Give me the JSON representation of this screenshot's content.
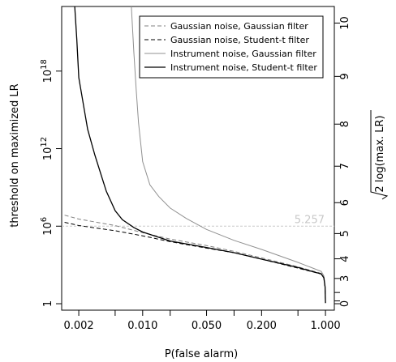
{
  "chart_data": {
    "type": "line",
    "xlabel": "P(false alarm)",
    "ylabel_left": "threshold on maximized LR",
    "ylabel_right": "√(2 log(max. LR))",
    "x_scale": "log",
    "y_scale": "log",
    "xlim": [
      0.0013,
      1.25
    ],
    "ylim_log10": [
      -0.5,
      23
    ],
    "x_ticks": [
      {
        "value": 0.002,
        "label": "0.002"
      },
      {
        "value": 0.01,
        "label": "0.010"
      },
      {
        "value": 0.05,
        "label": "0.050"
      },
      {
        "value": 0.2,
        "label": "0.200"
      },
      {
        "value": 1.0,
        "label": "1.000"
      }
    ],
    "x_minor_ticks": [
      0.005,
      0.02,
      0.1,
      0.5
    ],
    "y_left_ticks": [
      {
        "log10": 0,
        "base": "1",
        "exp": ""
      },
      {
        "log10": 6,
        "base": "10",
        "exp": "6"
      },
      {
        "log10": 12,
        "base": "10",
        "exp": "12"
      },
      {
        "log10": 18,
        "base": "10",
        "exp": "18"
      }
    ],
    "y_right_ticks": [
      {
        "value": 0,
        "label": "0"
      },
      {
        "value": 1,
        "label": ""
      },
      {
        "value": 2,
        "label": ""
      },
      {
        "value": 3,
        "label": "3"
      },
      {
        "value": 4,
        "label": "4"
      },
      {
        "value": 5,
        "label": "5"
      },
      {
        "value": 6,
        "label": "6"
      },
      {
        "value": 7,
        "label": "7"
      },
      {
        "value": 8,
        "label": "8"
      },
      {
        "value": 9,
        "label": "9"
      },
      {
        "value": 10,
        "label": "10"
      }
    ],
    "reference_line": {
      "sqrt_value": 5.257,
      "label": "5.257",
      "log10": 6.0,
      "color": "#c8c8c8"
    },
    "legend_position": "top-right",
    "series": [
      {
        "name": "Gaussian noise, Gaussian filter",
        "color": "#808080",
        "dash": "5,3",
        "width": 1,
        "points": [
          [
            0.0014,
            6.85
          ],
          [
            0.002,
            6.55
          ],
          [
            0.005,
            6.05
          ],
          [
            0.01,
            5.5
          ],
          [
            0.02,
            5.0
          ],
          [
            0.05,
            4.5
          ],
          [
            0.1,
            4.05
          ],
          [
            0.2,
            3.55
          ],
          [
            0.5,
            2.85
          ],
          [
            0.9,
            2.35
          ],
          [
            0.96,
            2.05
          ],
          [
            0.99,
            1.3
          ],
          [
            1.0,
            0.05
          ]
        ]
      },
      {
        "name": "Gaussian noise, Student-t filter",
        "color": "#000000",
        "dash": "5,3",
        "width": 1,
        "points": [
          [
            0.0014,
            6.3
          ],
          [
            0.002,
            6.05
          ],
          [
            0.005,
            5.65
          ],
          [
            0.01,
            5.25
          ],
          [
            0.02,
            4.8
          ],
          [
            0.05,
            4.3
          ],
          [
            0.1,
            3.95
          ],
          [
            0.2,
            3.45
          ],
          [
            0.5,
            2.75
          ],
          [
            0.9,
            2.3
          ],
          [
            0.96,
            2.0
          ],
          [
            0.99,
            1.3
          ],
          [
            1.0,
            0.05
          ]
        ]
      },
      {
        "name": "Instrument noise, Gaussian filter",
        "color": "#909090",
        "dash": "",
        "width": 1,
        "points": [
          [
            0.0075,
            23.2
          ],
          [
            0.008,
            19.5
          ],
          [
            0.0085,
            16.5
          ],
          [
            0.009,
            14.0
          ],
          [
            0.01,
            11.0
          ],
          [
            0.012,
            9.2
          ],
          [
            0.015,
            8.3
          ],
          [
            0.02,
            7.4
          ],
          [
            0.03,
            6.6
          ],
          [
            0.05,
            5.75
          ],
          [
            0.1,
            4.9
          ],
          [
            0.2,
            4.2
          ],
          [
            0.5,
            3.2
          ],
          [
            0.9,
            2.5
          ],
          [
            0.96,
            2.15
          ],
          [
            0.99,
            1.4
          ],
          [
            1.0,
            0.05
          ]
        ]
      },
      {
        "name": "Instrument noise, Student-t filter",
        "color": "#000000",
        "dash": "",
        "width": 1.3,
        "points": [
          [
            0.0018,
            23.2
          ],
          [
            0.0019,
            20.5
          ],
          [
            0.002,
            17.5
          ],
          [
            0.0023,
            15.0
          ],
          [
            0.0025,
            13.5
          ],
          [
            0.003,
            11.5
          ],
          [
            0.004,
            8.7
          ],
          [
            0.005,
            7.2
          ],
          [
            0.006,
            6.5
          ],
          [
            0.008,
            5.9
          ],
          [
            0.01,
            5.55
          ],
          [
            0.02,
            4.85
          ],
          [
            0.05,
            4.35
          ],
          [
            0.1,
            3.95
          ],
          [
            0.2,
            3.45
          ],
          [
            0.5,
            2.8
          ],
          [
            0.9,
            2.3
          ],
          [
            0.96,
            2.0
          ],
          [
            0.99,
            1.3
          ],
          [
            1.0,
            0.05
          ]
        ]
      }
    ]
  }
}
